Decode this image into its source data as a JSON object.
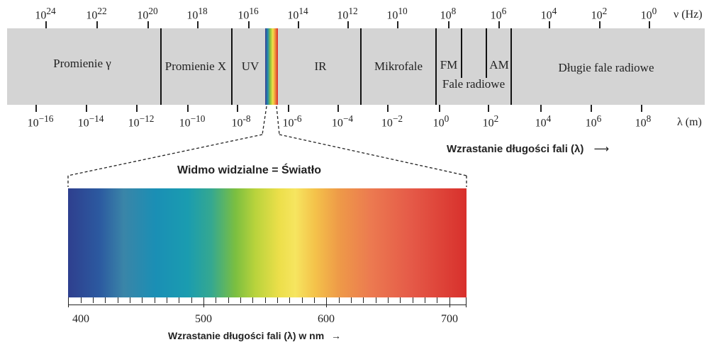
{
  "freq_axis": {
    "unit_label": "ν (Hz)",
    "ticks": [
      {
        "base": "10",
        "exp": "24"
      },
      {
        "base": "10",
        "exp": "22"
      },
      {
        "base": "10",
        "exp": "20"
      },
      {
        "base": "10",
        "exp": "18"
      },
      {
        "base": "10",
        "exp": "16"
      },
      {
        "base": "10",
        "exp": "14"
      },
      {
        "base": "10",
        "exp": "12"
      },
      {
        "base": "10",
        "exp": "10"
      },
      {
        "base": "10",
        "exp": "8"
      },
      {
        "base": "10",
        "exp": "6"
      },
      {
        "base": "10",
        "exp": "4"
      },
      {
        "base": "10",
        "exp": "2"
      },
      {
        "base": "10",
        "exp": "0"
      }
    ]
  },
  "wl_axis": {
    "unit_label": "λ (m)",
    "ticks": [
      {
        "base": "10",
        "exp": "−16"
      },
      {
        "base": "10",
        "exp": "−14"
      },
      {
        "base": "10",
        "exp": "−12"
      },
      {
        "base": "10",
        "exp": "−10"
      },
      {
        "base": "10",
        "exp": "-8"
      },
      {
        "base": "10",
        "exp": "-6"
      },
      {
        "base": "10",
        "exp": "−4"
      },
      {
        "base": "10",
        "exp": "−2"
      },
      {
        "base": "10",
        "exp": "0"
      },
      {
        "base": "10",
        "exp": "2"
      },
      {
        "base": "10",
        "exp": "4"
      },
      {
        "base": "10",
        "exp": "6"
      },
      {
        "base": "10",
        "exp": "8"
      }
    ],
    "direction_label": "Wzrastanie długości fali (λ)",
    "arrow": "⟶"
  },
  "bands": {
    "gamma": "Promienie  γ",
    "xray": "Promienie X",
    "uv": "UV",
    "ir": "IR",
    "microwave": "Mikrofale",
    "fm": "FM",
    "am": "AM",
    "radio": "Fale radiowe",
    "long_radio": "Długie fale radiowe"
  },
  "visible": {
    "title": "Widmo widzialne = Światło",
    "ticks": [
      "400",
      "500",
      "600",
      "700"
    ],
    "axis_label": "Wzrastanie długości fali (λ) w nm",
    "arrow": "→"
  },
  "colors": {
    "band_bg": "#d4d4d4",
    "violet": "#3a3f8f",
    "blue": "#1f8ab0",
    "green": "#8cc23a",
    "yellow": "#f4e04a",
    "orange": "#ef8a3c",
    "red": "#d72a2a"
  }
}
